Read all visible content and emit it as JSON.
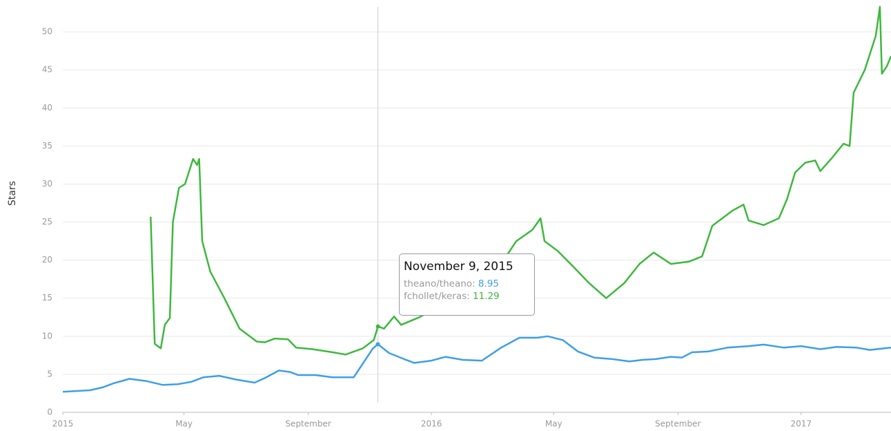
{
  "chart_data": {
    "type": "line",
    "y_label": "Stars",
    "xlim": [
      "2015-01-01",
      "2017-03-31"
    ],
    "xticks": [
      {
        "value": "2015-01-01",
        "label": "2015"
      },
      {
        "value": "2015-05-01",
        "label": "May"
      },
      {
        "value": "2015-09-01",
        "label": "September"
      },
      {
        "value": "2016-01-01",
        "label": "2016"
      },
      {
        "value": "2016-05-01",
        "label": "May"
      },
      {
        "value": "2016-09-01",
        "label": "September"
      },
      {
        "value": "2017-01-01",
        "label": "2017"
      }
    ],
    "ylim": [
      0,
      54
    ],
    "yticks": [
      0,
      5,
      10,
      15,
      20,
      25,
      30,
      35,
      40,
      45,
      50
    ],
    "grid": true,
    "series": [
      {
        "name": "theano/theano",
        "color": "#3d9ee8",
        "x": [
          "2015-01-01",
          "2015-01-28",
          "2015-02-10",
          "2015-02-20",
          "2015-03-08",
          "2015-03-25",
          "2015-04-10",
          "2015-04-25",
          "2015-05-08",
          "2015-05-20",
          "2015-06-05",
          "2015-06-22",
          "2015-07-10",
          "2015-07-20",
          "2015-08-03",
          "2015-08-14",
          "2015-08-22",
          "2015-09-08",
          "2015-09-25",
          "2015-10-16",
          "2015-10-23",
          "2015-11-04",
          "2015-11-09",
          "2015-11-20",
          "2015-12-05",
          "2015-12-15",
          "2016-01-01",
          "2016-01-15",
          "2016-02-01",
          "2016-02-20",
          "2016-03-10",
          "2016-03-28",
          "2016-04-15",
          "2016-04-25",
          "2016-05-10",
          "2016-05-25",
          "2016-06-10",
          "2016-06-28",
          "2016-07-15",
          "2016-07-28",
          "2016-08-10",
          "2016-08-25",
          "2016-09-05",
          "2016-09-15",
          "2016-10-01",
          "2016-10-20",
          "2016-11-10",
          "2016-11-25",
          "2016-12-15",
          "2017-01-01",
          "2017-01-20",
          "2017-02-05",
          "2017-02-25",
          "2017-03-10",
          "2017-03-31"
        ],
        "values": [
          2.7,
          2.9,
          3.3,
          3.8,
          4.4,
          4.1,
          3.6,
          3.7,
          4.0,
          4.6,
          4.8,
          4.3,
          3.9,
          4.5,
          5.5,
          5.3,
          4.9,
          4.9,
          4.6,
          4.6,
          6.0,
          8.4,
          8.95,
          7.8,
          7.0,
          6.5,
          6.8,
          7.3,
          6.9,
          6.8,
          8.5,
          9.8,
          9.8,
          10.0,
          9.5,
          8.0,
          7.2,
          7.0,
          6.7,
          6.9,
          7.0,
          7.3,
          7.2,
          7.9,
          8.0,
          8.5,
          8.7,
          8.9,
          8.5,
          8.7,
          8.3,
          8.6,
          8.5,
          8.2,
          8.5
        ]
      },
      {
        "name": "fchollet/keras",
        "color": "#3cb83c",
        "x": [
          "2015-03-29",
          "2015-04-02",
          "2015-04-08",
          "2015-04-12",
          "2015-04-17",
          "2015-04-20",
          "2015-04-26",
          "2015-05-02",
          "2015-05-10",
          "2015-05-14",
          "2015-05-16",
          "2015-05-19",
          "2015-05-27",
          "2015-06-10",
          "2015-06-25",
          "2015-07-12",
          "2015-07-20",
          "2015-07-30",
          "2015-08-12",
          "2015-08-20",
          "2015-09-05",
          "2015-09-25",
          "2015-10-08",
          "2015-10-25",
          "2015-11-05",
          "2015-11-09",
          "2015-11-15",
          "2015-11-25",
          "2015-12-02",
          "2015-12-20",
          "2016-01-10",
          "2016-02-10",
          "2016-03-10",
          "2016-03-25",
          "2016-04-10",
          "2016-04-18",
          "2016-04-22",
          "2016-05-05",
          "2016-05-20",
          "2016-06-05",
          "2016-06-22",
          "2016-07-10",
          "2016-07-25",
          "2016-08-08",
          "2016-08-25",
          "2016-09-12",
          "2016-09-25",
          "2016-10-05",
          "2016-10-25",
          "2016-11-05",
          "2016-11-10",
          "2016-11-25",
          "2016-12-10",
          "2016-12-18",
          "2016-12-26",
          "2017-01-05",
          "2017-01-15",
          "2017-01-20",
          "2017-02-01",
          "2017-02-12",
          "2017-02-18",
          "2017-02-22",
          "2017-03-05",
          "2017-03-16",
          "2017-03-20",
          "2017-03-22",
          "2017-03-27",
          "2017-03-31"
        ],
        "values": [
          25.7,
          9.0,
          8.4,
          11.5,
          12.4,
          25,
          29.5,
          30.0,
          33.3,
          32.5,
          33.3,
          22.5,
          18.5,
          15.0,
          11.0,
          9.3,
          9.2,
          9.7,
          9.6,
          8.5,
          8.3,
          7.9,
          7.6,
          8.4,
          9.5,
          11.29,
          11.0,
          12.6,
          11.5,
          12.5,
          14.0,
          17.0,
          19.5,
          22.5,
          24.0,
          25.5,
          22.5,
          21.2,
          19.2,
          17.0,
          15.0,
          17.0,
          19.5,
          21.0,
          19.5,
          19.8,
          20.5,
          24.5,
          26.5,
          27.3,
          25.2,
          24.6,
          25.5,
          28.0,
          31.5,
          32.8,
          33.1,
          31.7,
          33.5,
          35.3,
          35.0,
          42.0,
          45.0,
          49.5,
          53.3,
          44.5,
          45.5,
          46.8
        ]
      }
    ],
    "tooltip": {
      "title": "November 9, 2015",
      "x": "2015-11-09"
    }
  }
}
